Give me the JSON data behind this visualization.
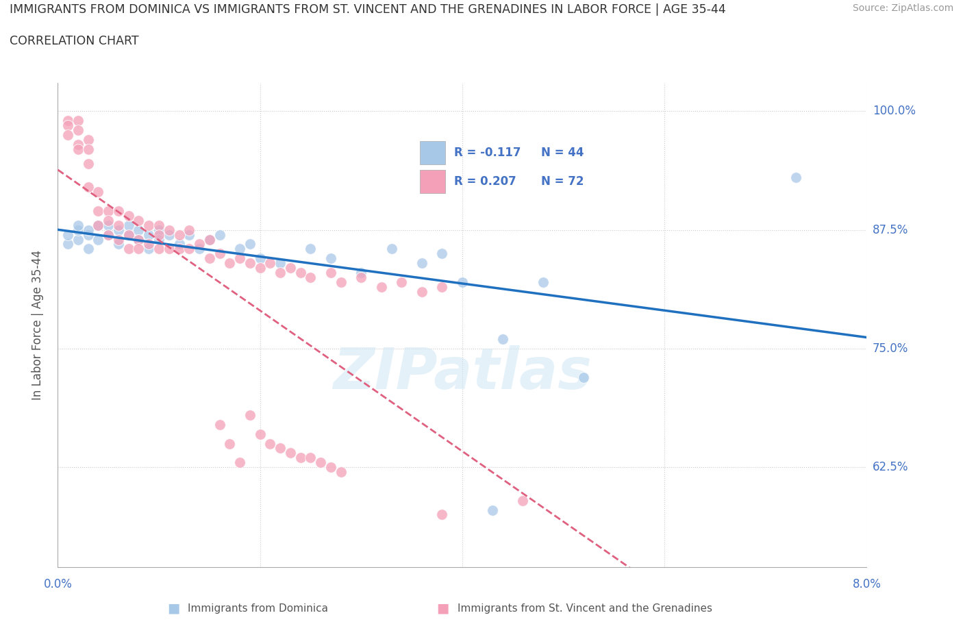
{
  "title_line1": "IMMIGRANTS FROM DOMINICA VS IMMIGRANTS FROM ST. VINCENT AND THE GRENADINES IN LABOR FORCE | AGE 35-44",
  "title_line2": "CORRELATION CHART",
  "source_text": "Source: ZipAtlas.com",
  "ylabel": "In Labor Force | Age 35-44",
  "xlim": [
    0.0,
    0.08
  ],
  "ylim": [
    0.52,
    1.03
  ],
  "yticks": [
    0.625,
    0.75,
    0.875,
    1.0
  ],
  "yticklabels": [
    "62.5%",
    "75.0%",
    "87.5%",
    "100.0%"
  ],
  "blue_color": "#a8c8e8",
  "pink_color": "#f4a0b8",
  "blue_line_color": "#2070c0",
  "pink_line_color": "#e06080",
  "blue_legend_R": "-0.117",
  "blue_legend_N": "44",
  "pink_legend_R": "0.207",
  "pink_legend_N": "72",
  "watermark_text": "ZIPatlas",
  "bottom_label_blue": "Immigrants from Dominica",
  "bottom_label_pink": "Immigrants from St. Vincent and the Grenadines",
  "blue_dots_x": [
    0.001,
    0.001,
    0.002,
    0.002,
    0.002,
    0.003,
    0.003,
    0.003,
    0.004,
    0.004,
    0.005,
    0.005,
    0.006,
    0.006,
    0.007,
    0.007,
    0.008,
    0.008,
    0.009,
    0.009,
    0.01,
    0.01,
    0.011,
    0.012,
    0.013,
    0.014,
    0.015,
    0.016,
    0.018,
    0.019,
    0.02,
    0.022,
    0.025,
    0.027,
    0.03,
    0.033,
    0.036,
    0.038,
    0.04,
    0.044,
    0.048,
    0.052,
    0.073,
    0.043
  ],
  "blue_dots_y": [
    0.86,
    0.87,
    0.865,
    0.875,
    0.88,
    0.855,
    0.87,
    0.875,
    0.865,
    0.88,
    0.87,
    0.88,
    0.875,
    0.86,
    0.87,
    0.88,
    0.875,
    0.865,
    0.87,
    0.855,
    0.875,
    0.865,
    0.87,
    0.86,
    0.87,
    0.855,
    0.865,
    0.87,
    0.855,
    0.86,
    0.845,
    0.84,
    0.855,
    0.845,
    0.83,
    0.855,
    0.84,
    0.85,
    0.82,
    0.76,
    0.82,
    0.72,
    0.93,
    0.58
  ],
  "pink_dots_x": [
    0.001,
    0.001,
    0.001,
    0.002,
    0.002,
    0.002,
    0.002,
    0.003,
    0.003,
    0.003,
    0.003,
    0.004,
    0.004,
    0.004,
    0.005,
    0.005,
    0.005,
    0.006,
    0.006,
    0.006,
    0.007,
    0.007,
    0.007,
    0.008,
    0.008,
    0.008,
    0.009,
    0.009,
    0.01,
    0.01,
    0.01,
    0.011,
    0.011,
    0.012,
    0.012,
    0.013,
    0.013,
    0.014,
    0.015,
    0.015,
    0.016,
    0.017,
    0.018,
    0.019,
    0.02,
    0.021,
    0.022,
    0.023,
    0.024,
    0.025,
    0.027,
    0.028,
    0.03,
    0.032,
    0.034,
    0.036,
    0.038,
    0.019,
    0.02,
    0.021,
    0.022,
    0.023,
    0.024,
    0.025,
    0.026,
    0.027,
    0.028,
    0.016,
    0.017,
    0.018,
    0.046,
    0.038
  ],
  "pink_dots_y": [
    0.99,
    0.985,
    0.975,
    0.99,
    0.98,
    0.965,
    0.96,
    0.97,
    0.96,
    0.945,
    0.92,
    0.915,
    0.895,
    0.88,
    0.895,
    0.885,
    0.87,
    0.895,
    0.88,
    0.865,
    0.89,
    0.87,
    0.855,
    0.885,
    0.865,
    0.855,
    0.88,
    0.86,
    0.88,
    0.87,
    0.855,
    0.875,
    0.855,
    0.87,
    0.855,
    0.875,
    0.855,
    0.86,
    0.865,
    0.845,
    0.85,
    0.84,
    0.845,
    0.84,
    0.835,
    0.84,
    0.83,
    0.835,
    0.83,
    0.825,
    0.83,
    0.82,
    0.825,
    0.815,
    0.82,
    0.81,
    0.815,
    0.68,
    0.66,
    0.65,
    0.645,
    0.64,
    0.635,
    0.635,
    0.63,
    0.625,
    0.62,
    0.67,
    0.65,
    0.63,
    0.59,
    0.575
  ]
}
